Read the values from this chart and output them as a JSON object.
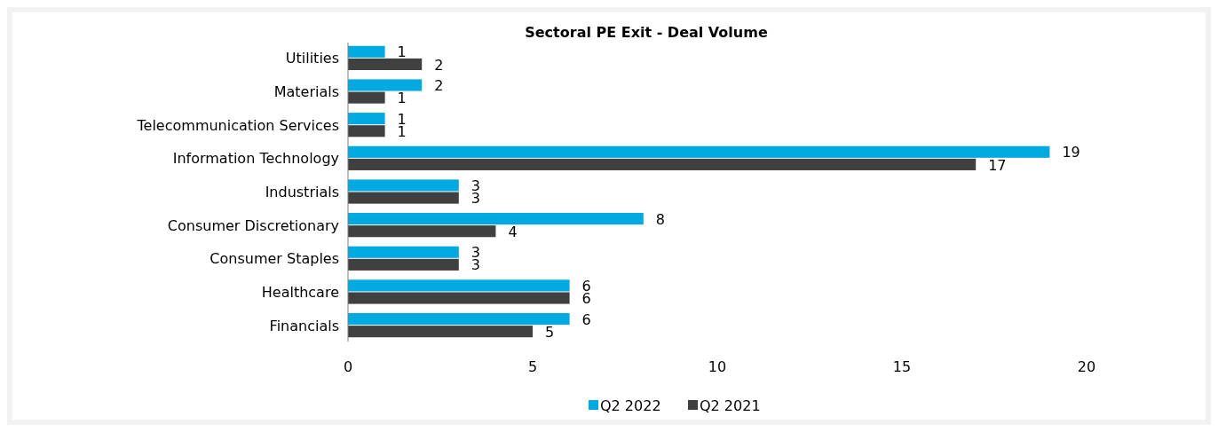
{
  "chart_data": {
    "type": "bar",
    "orientation": "horizontal",
    "title": "Sectoral PE Exit - Deal Volume",
    "categories": [
      "Utilities",
      "Materials",
      "Telecommunication Services",
      "Information Technology",
      "Industrials",
      "Consumer Discretionary",
      "Consumer Staples",
      "Healthcare",
      "Financials"
    ],
    "series": [
      {
        "name": "Q2 2022",
        "color": "#00a9e0",
        "values": [
          1,
          2,
          1,
          19,
          3,
          8,
          3,
          6,
          6
        ]
      },
      {
        "name": "Q2 2021",
        "color": "#404040",
        "values": [
          2,
          1,
          1,
          17,
          3,
          4,
          3,
          6,
          5
        ]
      }
    ],
    "xlim": [
      0,
      20
    ],
    "xticks": [
      0,
      5,
      10,
      15,
      20
    ],
    "data_labels": true,
    "legend": "bottom"
  }
}
